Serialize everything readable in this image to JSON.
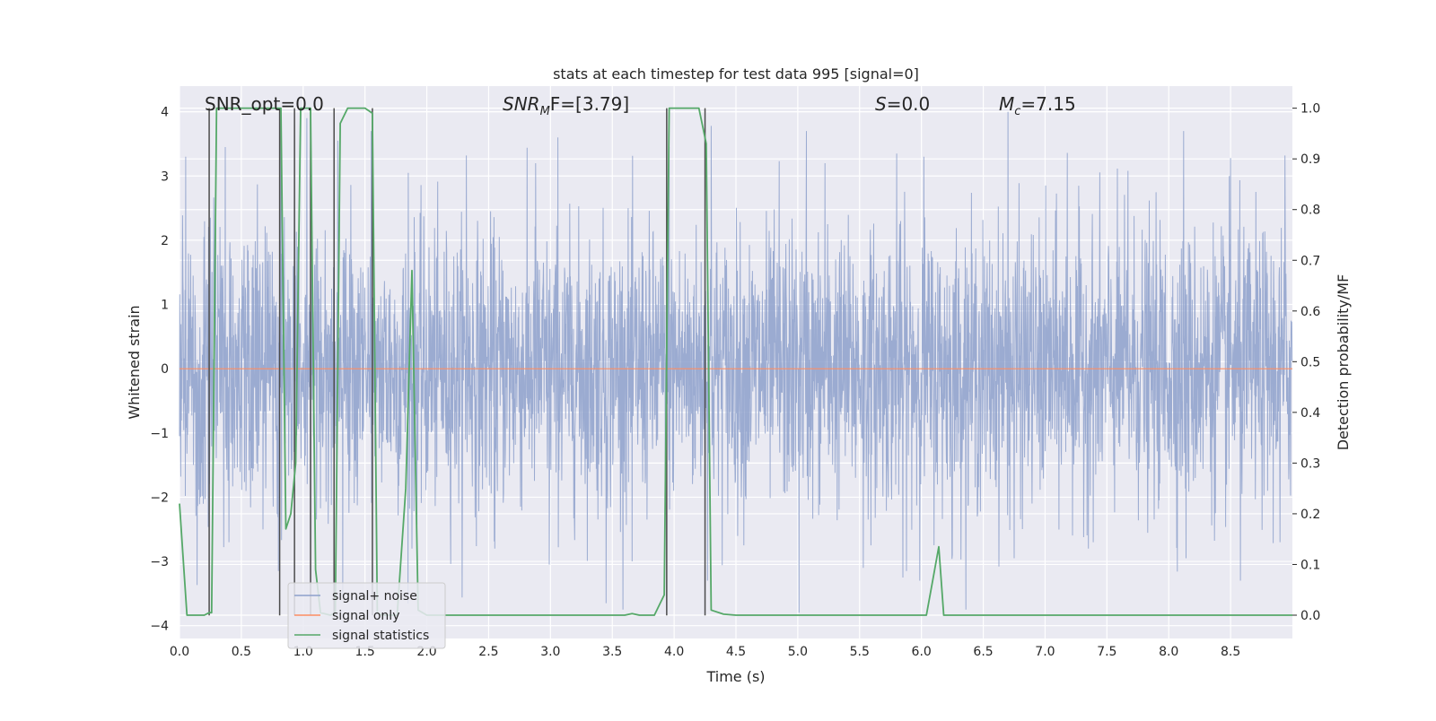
{
  "chart_data": {
    "type": "line",
    "title": "stats at each timestep for test data 995 [signal=0]",
    "xlabel": "Time (s)",
    "ylabel_left": "Whitened strain",
    "ylabel_right": "Detection probability/MF",
    "xlim": [
      0.0,
      9.0
    ],
    "ylim_left": [
      -4.2,
      4.4
    ],
    "ylim_right": [
      -0.046,
      1.0436
    ],
    "x_ticks": [
      "0.0",
      "0.5",
      "1.0",
      "1.5",
      "2.0",
      "2.5",
      "3.0",
      "3.5",
      "4.0",
      "4.5",
      "5.0",
      "5.5",
      "6.0",
      "6.5",
      "7.0",
      "7.5",
      "8.0",
      "8.5"
    ],
    "y_ticks_left": [
      "4",
      "3",
      "2",
      "1",
      "0",
      "−1",
      "−2",
      "−3",
      "−4"
    ],
    "y_ticks_right": [
      "1.0",
      "0.9",
      "0.8",
      "0.7",
      "0.6",
      "0.5",
      "0.4",
      "0.3",
      "0.2",
      "0.1",
      "0.0"
    ],
    "grid": true,
    "legend_position": "lower-left",
    "annotations": {
      "snr_opt": "SNR_opt=0.0",
      "snr_mf_main": "SNR",
      "snr_mf_sub": "M",
      "snr_mf_rest": "F=[3.79]",
      "s_main": "S",
      "s_rest": "=0.0",
      "mc_main": "M",
      "mc_sub": "c",
      "mc_rest": "=7.15"
    },
    "series": [
      {
        "name": "signal+ noise",
        "color": "#8da0cb",
        "axis": "left",
        "note_generation": "dense whitened noise, approx. std 1, spanning roughly -3.7 to 4.0",
        "peak_samples": [
          [
            0.05,
            3.3
          ],
          [
            0.25,
            2.35
          ],
          [
            0.37,
            3.45
          ],
          [
            0.63,
            2.87
          ],
          [
            0.82,
            3.6
          ],
          [
            0.93,
            3.8
          ],
          [
            1.03,
            3.9
          ],
          [
            1.28,
            3.55
          ],
          [
            1.55,
            3.7
          ],
          [
            1.85,
            3.05
          ],
          [
            2.32,
            3.32
          ],
          [
            2.88,
            3.2
          ],
          [
            3.06,
            3.6
          ],
          [
            3.66,
            2.7
          ],
          [
            3.96,
            3.45
          ],
          [
            4.3,
            3.78
          ],
          [
            4.85,
            3.23
          ],
          [
            5.07,
            3.7
          ],
          [
            5.22,
            3.2
          ],
          [
            5.8,
            3.35
          ],
          [
            6.02,
            3.3
          ],
          [
            6.7,
            4.0
          ],
          [
            7.18,
            3.36
          ],
          [
            7.67,
            3.08
          ],
          [
            8.12,
            3.7
          ],
          [
            8.5,
            3.28
          ],
          [
            8.94,
            3.32
          ]
        ],
        "trough_samples": [
          [
            0.17,
            -2.0
          ],
          [
            0.4,
            -2.7
          ],
          [
            0.8,
            -3.15
          ],
          [
            1.06,
            -3.75
          ],
          [
            1.32,
            -3.55
          ],
          [
            1.88,
            -2.8
          ],
          [
            2.55,
            -2.8
          ],
          [
            2.99,
            -3.05
          ],
          [
            3.45,
            -3.65
          ],
          [
            3.66,
            -3.0
          ],
          [
            4.27,
            -3.3
          ],
          [
            5.01,
            -3.8
          ],
          [
            5.53,
            -3.1
          ],
          [
            5.85,
            -3.25
          ],
          [
            6.25,
            -2.9
          ],
          [
            6.75,
            -2.95
          ],
          [
            7.35,
            -2.8
          ],
          [
            8.14,
            -2.95
          ],
          [
            8.58,
            -3.3
          ],
          [
            8.9,
            -2.7
          ]
        ]
      },
      {
        "name": "signal only",
        "color": "#fc8d62",
        "axis": "left",
        "x": [
          0.0,
          9.0
        ],
        "y": [
          0.0,
          0.0
        ]
      },
      {
        "name": "signal statistics",
        "color": "#55a868",
        "axis": "right",
        "x": [
          0.0,
          0.06,
          0.12,
          0.2,
          0.24,
          0.26,
          0.3,
          0.36,
          0.6,
          0.78,
          0.82,
          0.86,
          0.9,
          0.94,
          0.98,
          1.01,
          1.06,
          1.1,
          1.14,
          1.22,
          1.26,
          1.3,
          1.36,
          1.42,
          1.5,
          1.56,
          1.6,
          1.64,
          1.76,
          1.83,
          1.88,
          1.93,
          2.0,
          2.1,
          3.6,
          3.66,
          3.72,
          3.84,
          3.92,
          3.96,
          4.0,
          4.12,
          4.2,
          4.26,
          4.3,
          4.4,
          4.5,
          5.0,
          6.04,
          6.1,
          6.14,
          6.18,
          6.24,
          9.0
        ],
        "y": [
          0.22,
          0.0,
          0.0,
          0.0,
          0.005,
          0.005,
          1.0,
          1.0,
          1.0,
          1.0,
          1.0,
          0.17,
          0.2,
          0.3,
          1.0,
          1.0,
          1.0,
          0.09,
          0.005,
          0.0,
          0.005,
          0.97,
          1.0,
          1.0,
          1.0,
          0.99,
          0.005,
          0.0,
          0.0,
          0.25,
          0.68,
          0.01,
          0.0,
          0.0,
          0.0,
          0.003,
          0.0,
          0.0,
          0.04,
          1.0,
          1.0,
          1.0,
          1.0,
          0.93,
          0.01,
          0.002,
          0.0,
          0.0,
          0.0,
          0.08,
          0.135,
          0.0,
          0.0,
          0.0
        ]
      }
    ],
    "vertical_markers": {
      "color": "#4c4c4c",
      "x": [
        0.24,
        0.81,
        0.93,
        1.06,
        1.25,
        1.56,
        3.94,
        4.25
      ]
    }
  }
}
